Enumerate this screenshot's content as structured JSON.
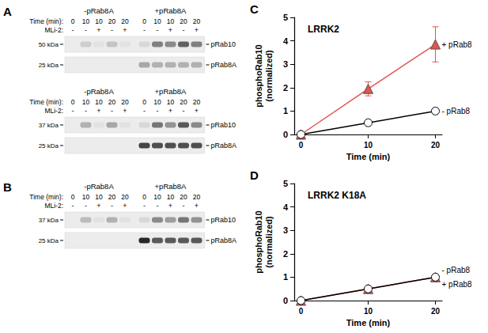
{
  "chart_data": [
    {
      "panel": "C",
      "type": "line",
      "title": "LRRK2",
      "x_label": "Time (min)",
      "y_label": "phosphoRab10\n(normalized)",
      "x": [
        0,
        10,
        20
      ],
      "xlim": [
        -1,
        21
      ],
      "xticks": [
        0,
        10,
        20
      ],
      "ylim": [
        0,
        5
      ],
      "yticks": [
        0,
        1,
        2,
        3,
        4,
        5
      ],
      "grid": false,
      "series": [
        {
          "name": "+ pRab8",
          "color": "#e4544a",
          "marker": "triangle",
          "values": [
            0,
            1.95,
            3.85
          ],
          "errors": [
            0.05,
            0.3,
            0.75
          ]
        },
        {
          "name": "- pRab8",
          "color": "#000000",
          "marker": "open_circle",
          "values": [
            0,
            0.5,
            1.0
          ],
          "errors": [
            0,
            0.05,
            0.05
          ]
        }
      ]
    },
    {
      "panel": "D",
      "type": "line",
      "title": "LRRK2 K18A",
      "x_label": "Time (min)",
      "y_label": "phosphoRab10\n(normalized)",
      "x": [
        0,
        10,
        20
      ],
      "xlim": [
        -1,
        21
      ],
      "xticks": [
        0,
        10,
        20
      ],
      "ylim": [
        0,
        5
      ],
      "yticks": [
        0,
        1,
        2,
        3,
        4,
        5
      ],
      "grid": false,
      "series": [
        {
          "name": "+ pRab8",
          "color": "#e4544a",
          "marker": "triangle",
          "values": [
            0,
            0.5,
            1.0
          ],
          "errors": [
            0.05,
            0.1,
            0.08
          ]
        },
        {
          "name": "- pRab8",
          "color": "#000000",
          "marker": "open_circle",
          "values": [
            0,
            0.5,
            1.0
          ],
          "errors": [
            0,
            0.05,
            0.05
          ]
        }
      ]
    }
  ],
  "blots": [
    {
      "panel": "A",
      "groups": [
        "-pRab8A",
        "+pRab8A"
      ],
      "time_label": "Time (min):",
      "times": [
        0,
        10,
        10,
        20,
        20,
        0,
        10,
        10,
        20,
        20
      ],
      "mli_label": "MLi-2:",
      "mli": [
        "-",
        "-",
        "+",
        "-",
        "+",
        "-",
        "-",
        "+",
        "-",
        "+"
      ],
      "strips": [
        {
          "mw_label": "50 kDa",
          "protein": "pRab10",
          "intensity": [
            0,
            0.15,
            0.05,
            0.2,
            0.05,
            0.1,
            0.55,
            0.5,
            0.7,
            0.55
          ]
        },
        {
          "mw_label": "25 kDa",
          "protein": "pRab8A",
          "intensity": [
            0,
            0,
            0,
            0,
            0,
            0.35,
            0.3,
            0.3,
            0.3,
            0.3
          ]
        }
      ]
    },
    {
      "panel": "",
      "groups": [
        "-pRab8A",
        "+pRab8A"
      ],
      "time_label": "Time (min):",
      "times": [
        0,
        10,
        10,
        20,
        20,
        0,
        10,
        10,
        20,
        20
      ],
      "mli_label": "MLi-2:",
      "mli": [
        "-",
        "-",
        "+",
        "-",
        "+",
        "-",
        "-",
        "+",
        "-",
        "+"
      ],
      "strips": [
        {
          "mw_label": "37 kDa",
          "protein": "pRab10",
          "intensity": [
            0,
            0.3,
            0.05,
            0.35,
            0.05,
            0.1,
            0.6,
            0.45,
            0.75,
            0.5
          ]
        },
        {
          "mw_label": "25 kDa",
          "protein": "pRab8A",
          "intensity": [
            0,
            0,
            0,
            0,
            0,
            0.85,
            0.8,
            0.8,
            0.8,
            0.8
          ]
        }
      ]
    },
    {
      "panel": "B",
      "groups": [
        "-pRab8A",
        "+pRab8A"
      ],
      "time_label": "Time (min):",
      "times": [
        0,
        10,
        10,
        20,
        20,
        0,
        10,
        10,
        20,
        20
      ],
      "mli_label": "MLi-2:",
      "mli": [
        "-",
        "-",
        "+",
        "-",
        "+",
        "-",
        "-",
        "+",
        "-",
        "+"
      ],
      "strips": [
        {
          "mw_label": "37 kDa",
          "protein": "pRab10",
          "intensity": [
            0,
            0.25,
            0.05,
            0.3,
            0.05,
            0.1,
            0.5,
            0.4,
            0.6,
            0.45
          ]
        },
        {
          "mw_label": "25 kDa",
          "protein": "pRab8A",
          "intensity": [
            0,
            0,
            0,
            0,
            0,
            1.0,
            0.75,
            0.75,
            0.75,
            0.75
          ]
        }
      ]
    }
  ]
}
